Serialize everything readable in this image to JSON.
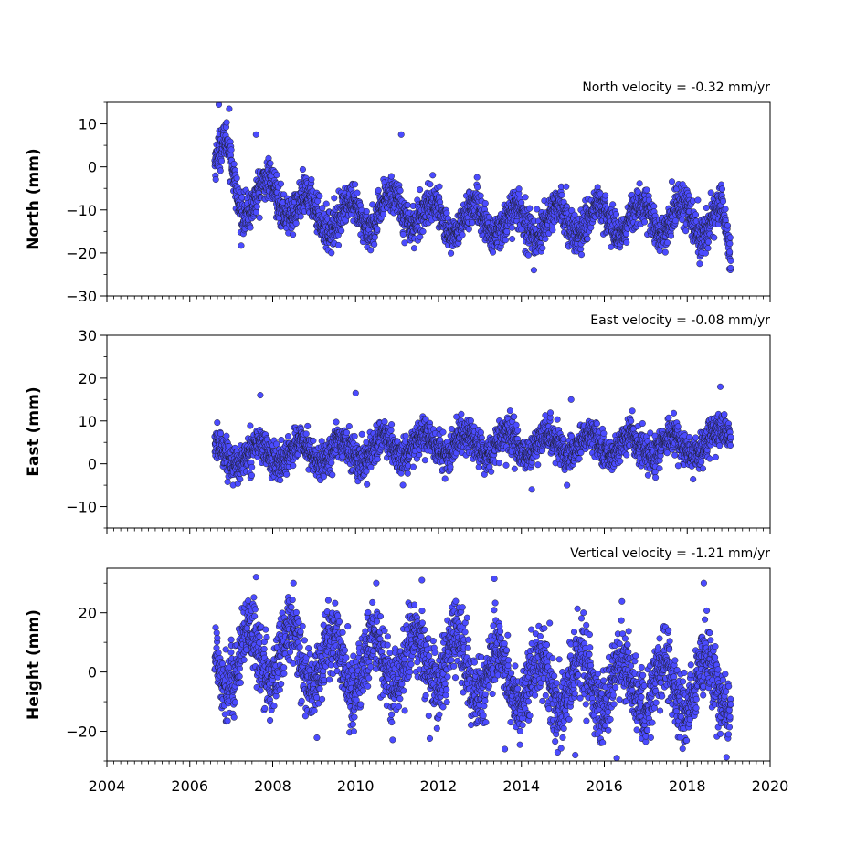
{
  "chart_data": [
    {
      "type": "scatter",
      "title": "North velocity = -0.32 mm/yr",
      "ylabel": "North (mm)",
      "xlim": [
        2004,
        2020
      ],
      "ylim": [
        -30,
        15
      ],
      "yticks": [
        -30,
        -20,
        -10,
        0,
        10
      ],
      "xticks": [
        2004,
        2006,
        2008,
        2010,
        2012,
        2014,
        2016,
        2018,
        2020
      ],
      "x_start": 2006.6,
      "x_end": 2019.05,
      "marker_color": "#4b4bff",
      "edge_color": "#1a1a1a",
      "series_trend": [
        [
          2006.6,
          1
        ],
        [
          2006.9,
          3
        ],
        [
          2007.2,
          -8
        ],
        [
          2008.0,
          -6
        ],
        [
          2009.0,
          -11
        ],
        [
          2010.0,
          -12
        ],
        [
          2011.0,
          -9
        ],
        [
          2012.0,
          -12
        ],
        [
          2014.0,
          -13
        ],
        [
          2016.0,
          -12
        ],
        [
          2018.0,
          -12
        ],
        [
          2018.85,
          -12
        ],
        [
          2019.05,
          -24
        ]
      ],
      "seasonal_amplitude": 3.5,
      "noise": 2.2,
      "outliers": [
        [
          2006.7,
          14.5
        ],
        [
          2006.95,
          13.5
        ],
        [
          2007.6,
          7.5
        ],
        [
          2011.1,
          7.5
        ],
        [
          2014.3,
          -24
        ],
        [
          2018.3,
          -22.5
        ]
      ]
    },
    {
      "type": "scatter",
      "title": "East velocity = -0.08 mm/yr",
      "ylabel": "East (mm)",
      "xlim": [
        2004,
        2020
      ],
      "ylim": [
        -15,
        30
      ],
      "yticks": [
        -10,
        0,
        10,
        20,
        30
      ],
      "xticks": [
        2004,
        2006,
        2008,
        2010,
        2012,
        2014,
        2016,
        2018,
        2020
      ],
      "x_start": 2006.6,
      "x_end": 2019.05,
      "marker_color": "#4b4bff",
      "edge_color": "#1a1a1a",
      "series_trend": [
        [
          2006.6,
          2
        ],
        [
          2010.0,
          3
        ],
        [
          2012.0,
          4.5
        ],
        [
          2016.0,
          4.5
        ],
        [
          2018.5,
          4
        ],
        [
          2019.05,
          8
        ]
      ],
      "seasonal_amplitude": 2.5,
      "noise": 2.0,
      "outliers": [
        [
          2007.7,
          16
        ],
        [
          2010.0,
          16.5
        ],
        [
          2018.8,
          18
        ],
        [
          2014.25,
          -6
        ],
        [
          2015.1,
          -5
        ],
        [
          2015.2,
          15
        ]
      ]
    },
    {
      "type": "scatter",
      "title": "Vertical velocity = -1.21 mm/yr",
      "ylabel": "Height (mm)",
      "xlim": [
        2004,
        2020
      ],
      "ylim": [
        -30,
        35
      ],
      "yticks": [
        -20,
        0,
        20
      ],
      "xticks": [
        2004,
        2006,
        2008,
        2010,
        2012,
        2014,
        2016,
        2018,
        2020
      ],
      "xtick_labels": [
        "2004",
        "2006",
        "2008",
        "2010",
        "2012",
        "2014",
        "2016",
        "2018",
        "2020"
      ],
      "x_start": 2006.6,
      "x_end": 2019.05,
      "marker_color": "#4b4bff",
      "edge_color": "#1a1a1a",
      "series_trend": [
        [
          2006.6,
          3
        ],
        [
          2008.0,
          6
        ],
        [
          2010.0,
          2
        ],
        [
          2012.0,
          4
        ],
        [
          2014.0,
          -3
        ],
        [
          2016.0,
          -4
        ],
        [
          2018.0,
          -5
        ],
        [
          2019.05,
          -3
        ]
      ],
      "seasonal_amplitude": 9,
      "noise": 6,
      "outliers": [
        [
          2007.6,
          32
        ],
        [
          2008.5,
          30
        ],
        [
          2010.5,
          30
        ],
        [
          2011.6,
          31
        ],
        [
          2018.4,
          30
        ],
        [
          2015.3,
          -28
        ],
        [
          2016.3,
          -29
        ],
        [
          2013.6,
          -26
        ]
      ]
    }
  ]
}
